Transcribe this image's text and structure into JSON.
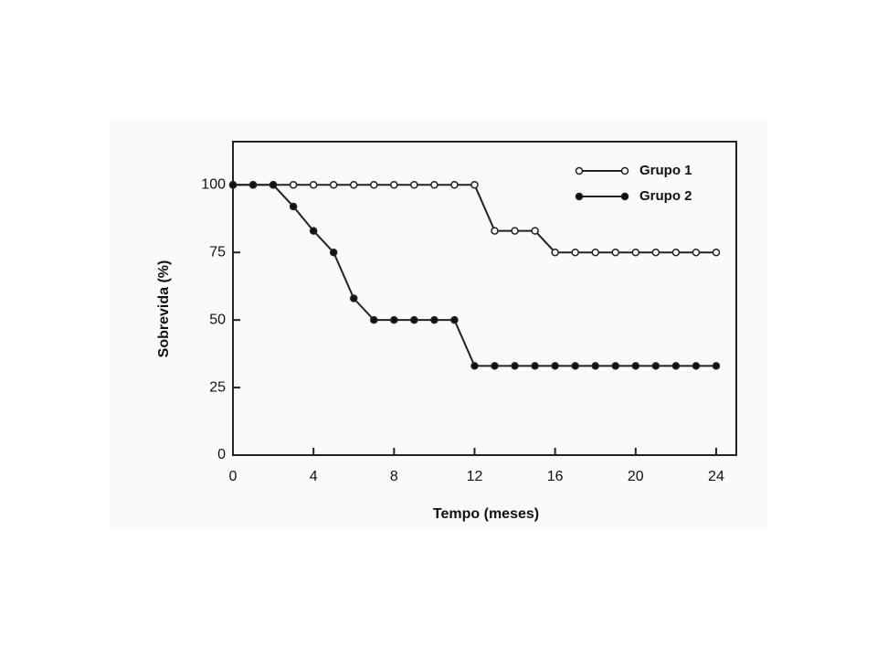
{
  "chart_data": {
    "type": "line",
    "x_label": "Tempo (meses)",
    "y_label": "Sobrevida (%)",
    "x": [
      0,
      1,
      2,
      3,
      4,
      5,
      6,
      7,
      8,
      9,
      10,
      11,
      12,
      13,
      14,
      15,
      16,
      17,
      18,
      19,
      20,
      21,
      22,
      23,
      24
    ],
    "series": [
      {
        "name": "Grupo 1",
        "color": "#222222",
        "marker_fill": "#ffffff",
        "values": [
          100,
          100,
          100,
          100,
          100,
          100,
          100,
          100,
          100,
          100,
          100,
          100,
          100,
          83,
          83,
          83,
          75,
          75,
          75,
          75,
          75,
          75,
          75,
          75,
          75
        ]
      },
      {
        "name": "Grupo 2",
        "color": "#222222",
        "marker_fill": "#111111",
        "values": [
          100,
          100,
          100,
          92,
          83,
          75,
          58,
          50,
          50,
          50,
          50,
          50,
          33,
          33,
          33,
          33,
          33,
          33,
          33,
          33,
          33,
          33,
          33,
          33,
          33
        ]
      }
    ],
    "xlim": [
      0,
      25
    ],
    "xticks": [
      0,
      4,
      8,
      12,
      16,
      20,
      24
    ],
    "ylim": [
      0,
      116
    ],
    "yticks": [
      0,
      25,
      50,
      75,
      100
    ],
    "legend": "upper right"
  }
}
